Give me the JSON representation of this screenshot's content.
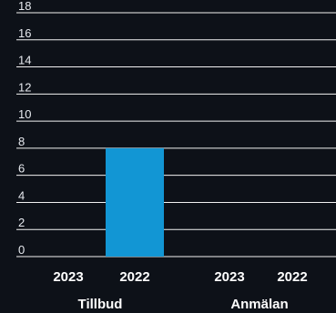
{
  "chart_data": {
    "type": "bar",
    "ylim": [
      0,
      18
    ],
    "yticks": [
      "0",
      "2",
      "4",
      "6",
      "8",
      "10",
      "12",
      "14",
      "16",
      "18"
    ],
    "groups": [
      {
        "label": "Tillbud",
        "categories": [
          "2023",
          "2022"
        ],
        "values": [
          0,
          8
        ]
      },
      {
        "label": "Anmälan",
        "categories": [
          "2023",
          "2022"
        ],
        "values": [
          0,
          0
        ]
      }
    ],
    "colors": {
      "bar": "#1296d4",
      "grid": "#f2f2f2",
      "background": "#0d1118",
      "text": "#ffffff"
    }
  }
}
